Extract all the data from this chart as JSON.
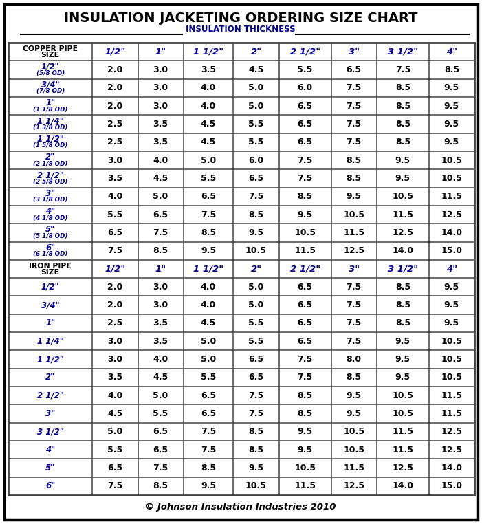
{
  "title": "INSULATION JACKETING ORDERING SIZE CHART",
  "subtitle": "INSULATION THICKNESS",
  "footer": "© Johnson Insulation Industries 2010",
  "col_headers": [
    "COPPER PIPE\nSIZE",
    "1/2\"",
    "1\"",
    "1 1/2\"",
    "2\"",
    "2 1/2\"",
    "3\"",
    "3 1/2\"",
    "4\""
  ],
  "copper_rows": [
    [
      "1/2\"",
      "(5/8 OD)",
      2.0,
      3.0,
      3.5,
      4.5,
      5.5,
      6.5,
      7.5,
      8.5
    ],
    [
      "3/4\"",
      "(7/8 OD)",
      2.0,
      3.0,
      4.0,
      5.0,
      6.0,
      7.5,
      8.5,
      9.5
    ],
    [
      "1\"",
      "(1 1/8 OD)",
      2.0,
      3.0,
      4.0,
      5.0,
      6.5,
      7.5,
      8.5,
      9.5
    ],
    [
      "1 1/4\"",
      "(1 3/8 OD)",
      2.5,
      3.5,
      4.5,
      5.5,
      6.5,
      7.5,
      8.5,
      9.5
    ],
    [
      "1 1/2\"",
      "(1 5/8 OD)",
      2.5,
      3.5,
      4.5,
      5.5,
      6.5,
      7.5,
      8.5,
      9.5
    ],
    [
      "2\"",
      "(2 1/8 OD)",
      3.0,
      4.0,
      5.0,
      6.0,
      7.5,
      8.5,
      9.5,
      10.5
    ],
    [
      "2 1/2\"",
      "(2 5/8 OD)",
      3.5,
      4.5,
      5.5,
      6.5,
      7.5,
      8.5,
      9.5,
      10.5
    ],
    [
      "3\"",
      "(3 1/8 OD)",
      4.0,
      5.0,
      6.5,
      7.5,
      8.5,
      9.5,
      10.5,
      11.5
    ],
    [
      "4\"",
      "(4 1/8 OD)",
      5.5,
      6.5,
      7.5,
      8.5,
      9.5,
      10.5,
      11.5,
      12.5
    ],
    [
      "5\"",
      "(5 1/8 OD)",
      6.5,
      7.5,
      8.5,
      9.5,
      10.5,
      11.5,
      12.5,
      14.0
    ],
    [
      "6\"",
      "(6 1/8 OD)",
      7.5,
      8.5,
      9.5,
      10.5,
      11.5,
      12.5,
      14.0,
      15.0
    ]
  ],
  "iron_rows": [
    [
      "1/2\"",
      2.0,
      3.0,
      4.0,
      5.0,
      6.5,
      7.5,
      8.5,
      9.5
    ],
    [
      "3/4\"",
      2.0,
      3.0,
      4.0,
      5.0,
      6.5,
      7.5,
      8.5,
      9.5
    ],
    [
      "1\"",
      2.5,
      3.5,
      4.5,
      5.5,
      6.5,
      7.5,
      8.5,
      9.5
    ],
    [
      "1 1/4\"",
      3.0,
      3.5,
      5.0,
      5.5,
      6.5,
      7.5,
      9.5,
      10.5
    ],
    [
      "1 1/2\"",
      3.0,
      4.0,
      5.0,
      6.5,
      7.5,
      8.0,
      9.5,
      10.5
    ],
    [
      "2\"",
      3.5,
      4.5,
      5.5,
      6.5,
      7.5,
      8.5,
      9.5,
      10.5
    ],
    [
      "2 1/2\"",
      4.0,
      5.0,
      6.5,
      7.5,
      8.5,
      9.5,
      10.5,
      11.5
    ],
    [
      "3\"",
      4.5,
      5.5,
      6.5,
      7.5,
      8.5,
      9.5,
      10.5,
      11.5
    ],
    [
      "3 1/2\"",
      5.0,
      6.5,
      7.5,
      8.5,
      9.5,
      10.5,
      11.5,
      12.5
    ],
    [
      "4\"",
      5.5,
      6.5,
      7.5,
      8.5,
      9.5,
      10.5,
      11.5,
      12.5
    ],
    [
      "5\"",
      6.5,
      7.5,
      8.5,
      9.5,
      10.5,
      11.5,
      12.5,
      14.0
    ],
    [
      "6\"",
      7.5,
      8.5,
      9.5,
      10.5,
      11.5,
      12.5,
      14.0,
      15.0
    ]
  ],
  "thickness_headers": [
    "1/2\"",
    "1\"",
    "1 1/2\"",
    "2\"",
    "2 1/2\"",
    "3\"",
    "3 1/2\"",
    "4\""
  ],
  "title_color": "#000000",
  "subtitle_color": "#00008B",
  "header_black": "#000000",
  "header_blue": "#00008B",
  "data_black": "#000000",
  "pipe_blue": "#00008B",
  "grid_color": "#444444",
  "bg_color": "#FFFFFF"
}
